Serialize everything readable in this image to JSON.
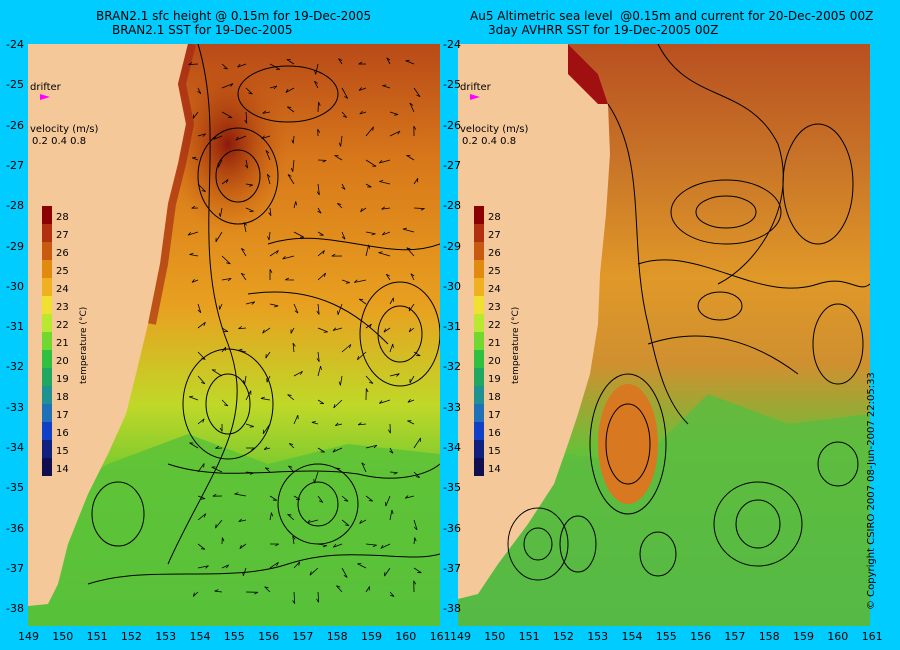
{
  "left_panel": {
    "title_line1": "BRAN2.1 sfc height @ 0.15m for 19-Dec-2005",
    "title_line2": "BRAN2.1 SST for 19-Dec-2005"
  },
  "right_panel": {
    "title_line1": "Au5 Altimetric sea level  @0.15m and current for 20-Dec-2005 00Z",
    "title_line2": "3day AVHRR SST for 19-Dec-2005 00Z"
  },
  "legend": {
    "drifter": "drifter",
    "velocity_label": "velocity (m/s)",
    "velocity_values": "0.2 0.4 0.8",
    "colorbar_label": "temperature (°C)",
    "colorbar_ticks": [
      "28",
      "27",
      "26",
      "25",
      "24",
      "23",
      "22",
      "21",
      "20",
      "19",
      "18",
      "17",
      "16",
      "15",
      "14"
    ],
    "colorbar_colors": [
      "#8b0000",
      "#b03010",
      "#c85a10",
      "#e08a10",
      "#f0b020",
      "#f0e030",
      "#b8e830",
      "#70d830",
      "#30c040",
      "#20a860",
      "#209090",
      "#2070b8",
      "#1040c8",
      "#102080",
      "#101050"
    ]
  },
  "axes": {
    "y_ticks": [
      "-24",
      "-25",
      "-26",
      "-27",
      "-28",
      "-29",
      "-30",
      "-31",
      "-32",
      "-33",
      "-34",
      "-35",
      "-36",
      "-37",
      "-38"
    ],
    "x_ticks_left": [
      "149",
      "150",
      "151",
      "152",
      "153",
      "154",
      "155",
      "156",
      "157",
      "158",
      "159",
      "160",
      "161"
    ],
    "x_ticks_right": [
      "149",
      "150",
      "151",
      "152",
      "153",
      "154",
      "155",
      "156",
      "157",
      "158",
      "159",
      "160",
      "161"
    ]
  },
  "copyright": "© Copyright CSIRO 2007  08-Jun-2007 22:05:33",
  "colors": {
    "background": "#00ccff",
    "land": "#f5c89a",
    "warm": "#d06a1a",
    "hot": "#8b1a0a",
    "mid": "#f0a828",
    "cool": "#60c830",
    "cold": "#30b070",
    "drifter": "#ff00ff"
  }
}
